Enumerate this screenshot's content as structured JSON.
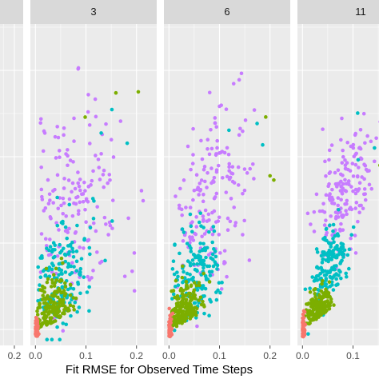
{
  "chart_data": {
    "type": "scatter",
    "title": "",
    "xlabel": "Fit RMSE for Observed Time Steps",
    "ylabel": "",
    "xlim": [
      -0.01,
      0.24
    ],
    "ylim": [
      0,
      1.1
    ],
    "grid": true,
    "x_ticks": [
      "0.0",
      "0.1",
      "0.2"
    ],
    "colors": {
      "panel_background": "#ebebeb",
      "strip_background": "#d9d9d9",
      "gridline": "#ffffff",
      "series_1": "#f8766d",
      "series_2": "#7cae00",
      "series_3": "#00bfc4",
      "series_4": "#c77cff"
    },
    "panels": [
      {
        "label": "",
        "partial": true
      },
      {
        "label": "3",
        "spread": 1.0
      },
      {
        "label": "6",
        "spread": 0.85
      },
      {
        "label": "11",
        "spread": 0.6,
        "partial": true
      }
    ],
    "series_visual_order": [
      "series_4",
      "series_3",
      "series_2",
      "series_1"
    ]
  }
}
